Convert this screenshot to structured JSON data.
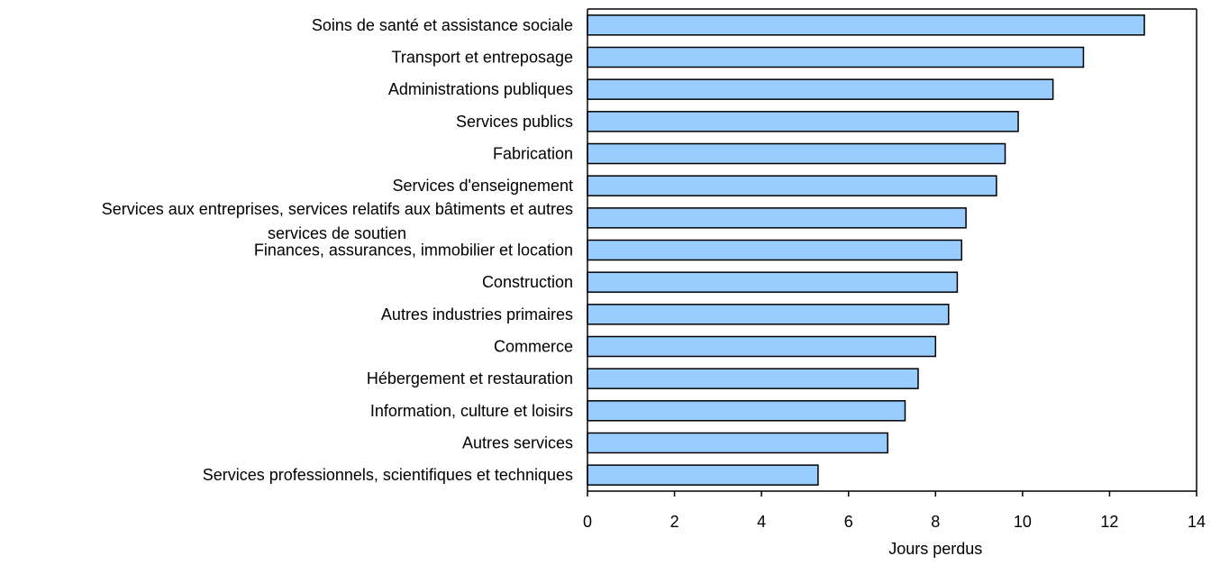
{
  "chart_data": {
    "type": "bar",
    "orientation": "horizontal",
    "categories": [
      "Soins de santé et assistance sociale",
      "Transport et entreposage",
      "Administrations publiques",
      "Services publics",
      "Fabrication",
      "Services d'enseignement",
      "Services aux entreprises, services relatifs aux bâtiments et autres services de soutien",
      "Finances, assurances, immobilier et location",
      "Construction",
      "Autres industries primaires",
      "Commerce",
      "Hébergement et restauration",
      "Information, culture et loisirs",
      "Autres services",
      "Services professionnels, scientifiques et techniques"
    ],
    "category_label_lines": [
      [
        "Soins de santé et assistance sociale"
      ],
      [
        "Transport et entreposage"
      ],
      [
        "Administrations publiques"
      ],
      [
        "Services publics"
      ],
      [
        "Fabrication"
      ],
      [
        "Services d'enseignement"
      ],
      [
        "Services aux entreprises, services relatifs aux bâtiments et autres",
        "services de soutien"
      ],
      [
        "Finances, assurances, immobilier et location"
      ],
      [
        "Construction"
      ],
      [
        "Autres industries primaires"
      ],
      [
        "Commerce"
      ],
      [
        "Hébergement et restauration"
      ],
      [
        "Information, culture et loisirs"
      ],
      [
        "Autres services"
      ],
      [
        "Services professionnels, scientifiques et techniques"
      ]
    ],
    "values": [
      12.8,
      11.4,
      10.7,
      9.9,
      9.6,
      9.4,
      8.7,
      8.6,
      8.5,
      8.3,
      8.0,
      7.6,
      7.3,
      6.9,
      5.3
    ],
    "xlabel": "Jours perdus",
    "ylabel": "",
    "xlim": [
      0,
      14
    ],
    "xticks": [
      0,
      2,
      4,
      6,
      8,
      10,
      12,
      14
    ],
    "grid": false,
    "legend": "none",
    "bar_color": "#99ccff",
    "bar_edge_color": "#000000"
  }
}
